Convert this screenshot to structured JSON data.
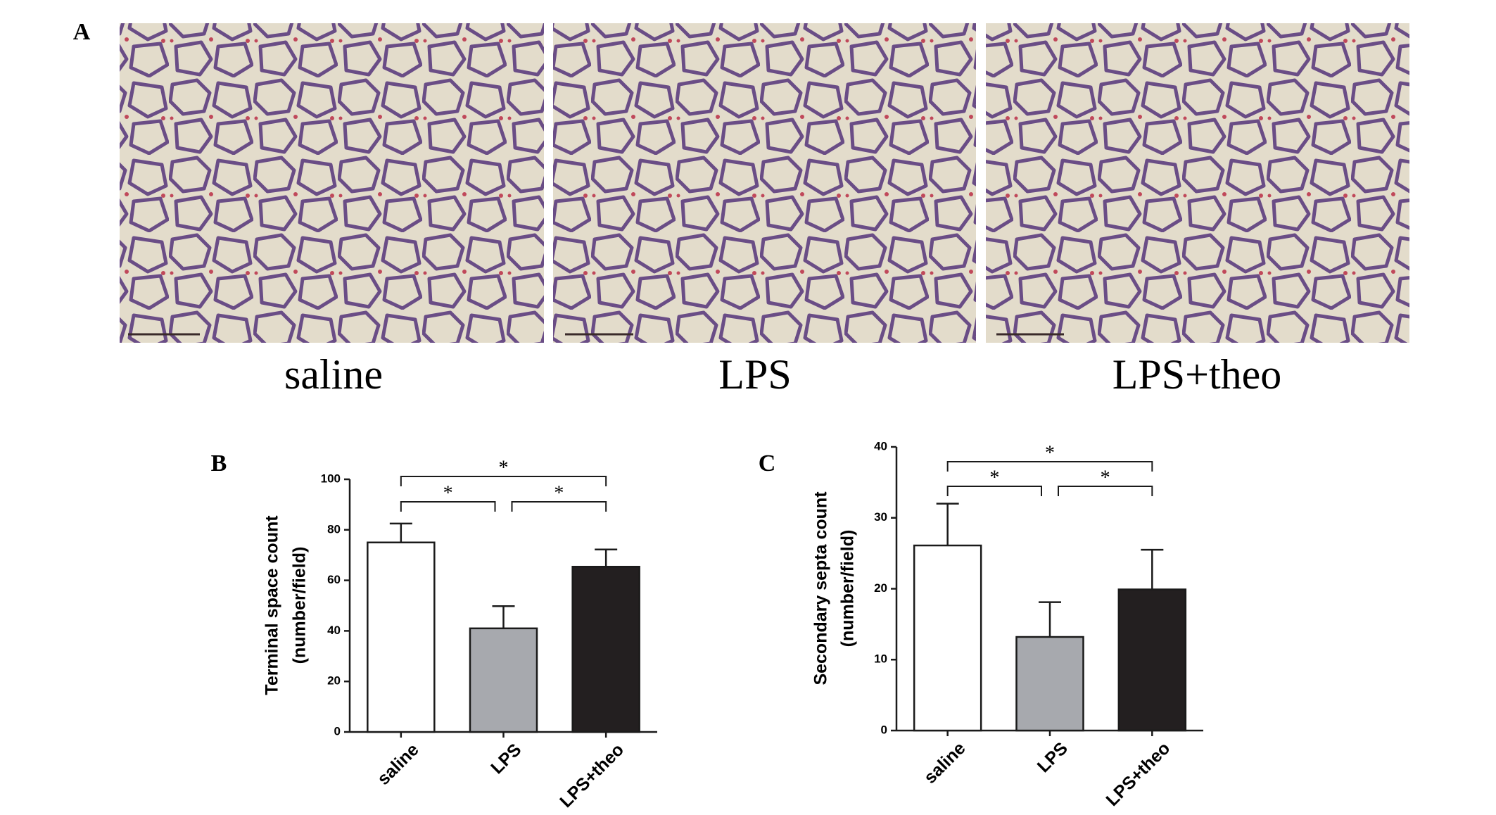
{
  "panels": {
    "A": {
      "label": "A",
      "captions": [
        "saline",
        "LPS",
        "LPS+theo"
      ]
    }
  },
  "chart_data": [
    {
      "type": "bar",
      "panel_label": "B",
      "ylabel": [
        "Terminal space count",
        "(number/field)"
      ],
      "categories": [
        "saline",
        "LPS",
        "LPS+theo"
      ],
      "values": [
        75,
        41,
        65.4
      ],
      "errors": [
        7.5,
        8.8,
        6.8
      ],
      "colors": [
        "#ffffff",
        "#a7a9ae",
        "#231f20"
      ],
      "ylim": [
        0,
        100
      ],
      "yticks": [
        0,
        20,
        40,
        60,
        80,
        100
      ],
      "annotations": [
        {
          "text": "*",
          "between": [
            0,
            2
          ]
        },
        {
          "text": "*",
          "between": [
            0,
            1
          ]
        },
        {
          "text": "*",
          "between": [
            1,
            2
          ]
        }
      ]
    },
    {
      "type": "bar",
      "panel_label": "C",
      "ylabel": [
        "Secondary septa count",
        "(number/field)"
      ],
      "categories": [
        "saline",
        "LPS",
        "LPS+theo"
      ],
      "values": [
        26.1,
        13.2,
        19.9
      ],
      "errors": [
        5.9,
        4.9,
        5.6
      ],
      "colors": [
        "#ffffff",
        "#a7a9ae",
        "#231f20"
      ],
      "ylim": [
        0,
        40
      ],
      "yticks": [
        0,
        10,
        20,
        30,
        40
      ],
      "annotations": [
        {
          "text": "*",
          "between": [
            0,
            2
          ]
        },
        {
          "text": "*",
          "between": [
            0,
            1
          ]
        },
        {
          "text": "*",
          "between": [
            1,
            2
          ]
        }
      ]
    }
  ]
}
